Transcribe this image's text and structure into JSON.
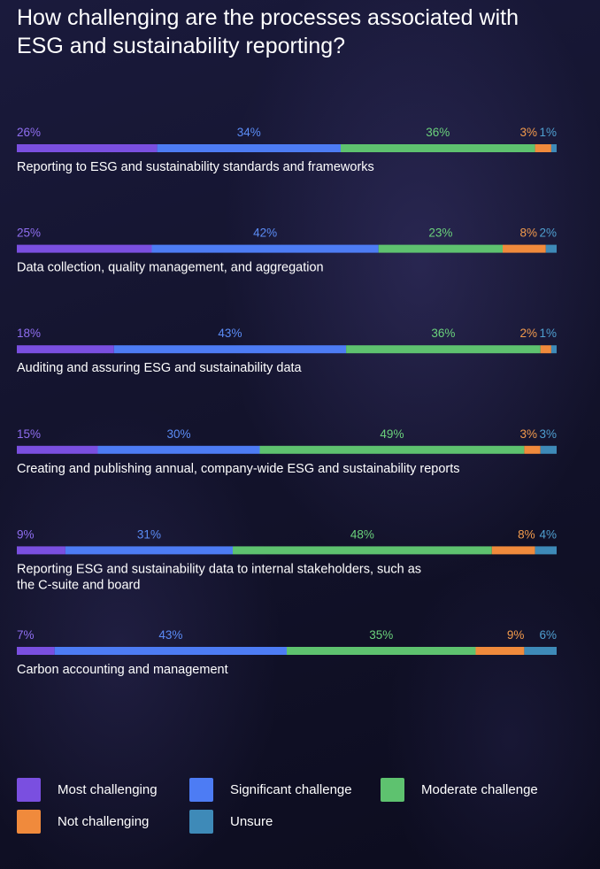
{
  "chart_data": {
    "type": "bar",
    "orientation": "horizontal",
    "stacked": true,
    "title": "How challenging are the processes associated with ESG and sustainability reporting?",
    "categories": [
      [
        "Reporting to ESG and sustainability standards and frameworks"
      ],
      [
        "Data collection, quality management, and aggregation"
      ],
      [
        "Auditing and assuring ESG and sustainability data"
      ],
      [
        "Creating and publishing annual, company-wide ESG and sustainability reports"
      ],
      [
        "Reporting ESG and sustainability data to internal stakeholders, such as",
        "the C-suite and board"
      ],
      [
        "Carbon accounting and management"
      ]
    ],
    "series": [
      {
        "name": "Most challenging",
        "color": "#7a4fe0",
        "values": [
          26,
          25,
          18,
          15,
          9,
          7
        ]
      },
      {
        "name": "Significant challenge",
        "color": "#4d7cf4",
        "values": [
          34,
          42,
          43,
          30,
          31,
          43
        ]
      },
      {
        "name": "Moderate challenge",
        "color": "#5ec26f",
        "values": [
          36,
          23,
          36,
          49,
          48,
          35
        ]
      },
      {
        "name": "Not challenging",
        "color": "#f08a3c",
        "values": [
          3,
          8,
          2,
          3,
          8,
          9
        ]
      },
      {
        "name": "Unsure",
        "color": "#3e8ab8",
        "values": [
          1,
          2,
          1,
          3,
          4,
          6
        ]
      }
    ],
    "label_colors": [
      "#8f6ef0",
      "#5b8cf6",
      "#6bd27c",
      "#f29a4c",
      "#4f9fd0"
    ],
    "value_suffix": "%",
    "xlim": [
      0,
      100
    ]
  }
}
